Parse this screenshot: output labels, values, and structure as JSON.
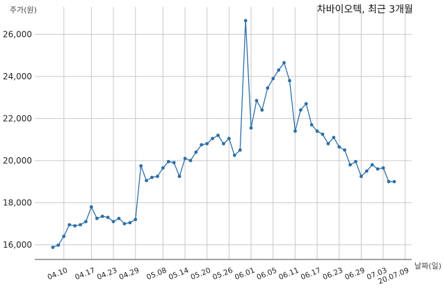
{
  "chart_data": {
    "type": "line",
    "title": "차바이오텍, 최근 3개월",
    "xlabel": "날짜(일)",
    "ylabel": "주가(원)",
    "ylim": [
      15300,
      27300
    ],
    "yticks": [
      16000,
      18000,
      20000,
      22000,
      24000,
      26000
    ],
    "ytick_labels": [
      "16,000",
      "18,000",
      "20,000",
      "22,000",
      "24,000",
      "26,000"
    ],
    "xtick_labels": [
      "04.10",
      "04.17",
      "04.23",
      "04.29",
      "05.08",
      "05.14",
      "05.20",
      "05.26",
      "06.01",
      "06.05",
      "06.11",
      "06.17",
      "06.23",
      "06.29",
      "07.03",
      "20.07.09"
    ],
    "xtick_index": [
      2,
      7,
      11,
      15,
      20,
      24,
      28,
      32,
      36,
      40,
      44,
      48,
      52,
      56,
      60,
      64
    ],
    "grid": true,
    "series_color": "#2b6ea6",
    "series": [
      {
        "values": [
          15880,
          15980,
          16400,
          16950,
          16900,
          16950,
          17100,
          17800,
          17250,
          17350,
          17300,
          17100,
          17250,
          17000,
          17050,
          17200,
          19750,
          19050,
          19200,
          19250,
          19650,
          19950,
          19900,
          19250,
          20100,
          20000,
          20400,
          20750,
          20800,
          21050,
          21200,
          20800,
          21050,
          20250,
          20500,
          26650,
          21550,
          22850,
          22400,
          23450,
          23900,
          24300,
          24650,
          23800,
          21400,
          22400,
          22700,
          21700,
          21400,
          21250,
          20800,
          21100,
          20650,
          20500,
          19800,
          19950,
          19250,
          19500,
          19800,
          19600,
          19650,
          19000,
          19000
        ]
      }
    ]
  }
}
